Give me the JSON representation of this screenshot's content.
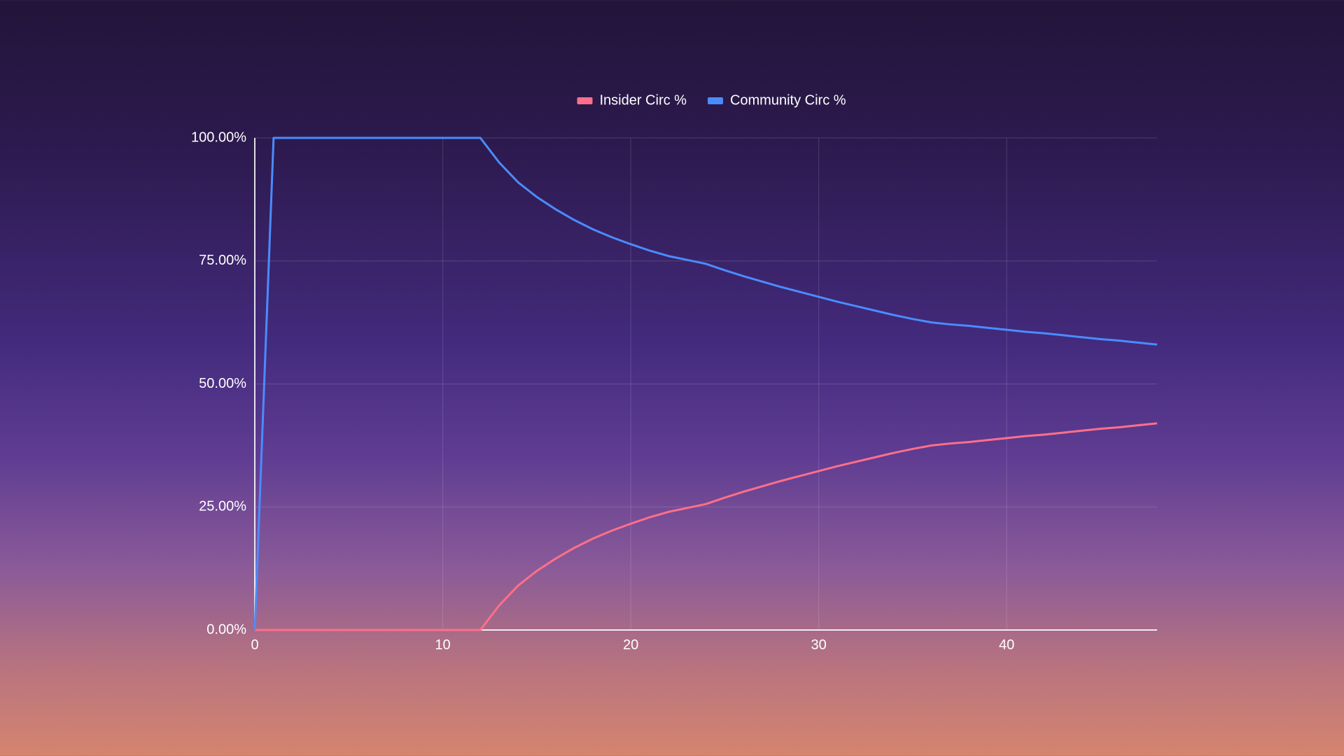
{
  "chart_data": {
    "type": "line",
    "x": [
      0,
      1,
      2,
      3,
      4,
      5,
      6,
      7,
      8,
      9,
      10,
      11,
      12,
      13,
      14,
      15,
      16,
      17,
      18,
      19,
      20,
      21,
      22,
      23,
      24,
      25,
      26,
      27,
      28,
      29,
      30,
      31,
      32,
      33,
      34,
      35,
      36,
      37,
      38,
      39,
      40,
      41,
      42,
      43,
      44,
      45,
      46,
      47,
      48
    ],
    "series": [
      {
        "name": "Insider Circ %",
        "color": "#ff6f8a",
        "values": [
          0,
          0,
          0,
          0,
          0,
          0,
          0,
          0,
          0,
          0,
          0,
          0,
          0,
          5.0,
          9.0,
          12.0,
          14.5,
          16.7,
          18.6,
          20.2,
          21.6,
          22.9,
          24.0,
          24.8,
          25.6,
          26.9,
          28.1,
          29.2,
          30.3,
          31.3,
          32.3,
          33.3,
          34.2,
          35.1,
          36.0,
          36.8,
          37.5,
          37.9,
          38.2,
          38.6,
          39.0,
          39.4,
          39.7,
          40.1,
          40.5,
          40.9,
          41.2,
          41.6,
          42.0
        ]
      },
      {
        "name": "Community Circ %",
        "color": "#4a8cff",
        "values": [
          0,
          100,
          100,
          100,
          100,
          100,
          100,
          100,
          100,
          100,
          100,
          100,
          100,
          95.0,
          91.0,
          88.0,
          85.5,
          83.3,
          81.4,
          79.8,
          78.4,
          77.1,
          76.0,
          75.2,
          74.4,
          73.1,
          71.9,
          70.8,
          69.7,
          68.7,
          67.7,
          66.7,
          65.8,
          64.9,
          64.0,
          63.2,
          62.5,
          62.1,
          61.8,
          61.4,
          61.0,
          60.6,
          60.3,
          59.9,
          59.5,
          59.1,
          58.8,
          58.4,
          58.0
        ]
      }
    ],
    "xlim": [
      0,
      48
    ],
    "xticks": [
      0,
      10,
      20,
      30,
      40
    ],
    "ylim": [
      0,
      100
    ],
    "yticks": [
      {
        "value": 0,
        "label": "0.00%"
      },
      {
        "value": 25,
        "label": "25.00%"
      },
      {
        "value": 50,
        "label": "50.00%"
      },
      {
        "value": 75,
        "label": "75.00%"
      },
      {
        "value": 100,
        "label": "100.00%"
      }
    ],
    "grid": true,
    "legend": "top"
  }
}
